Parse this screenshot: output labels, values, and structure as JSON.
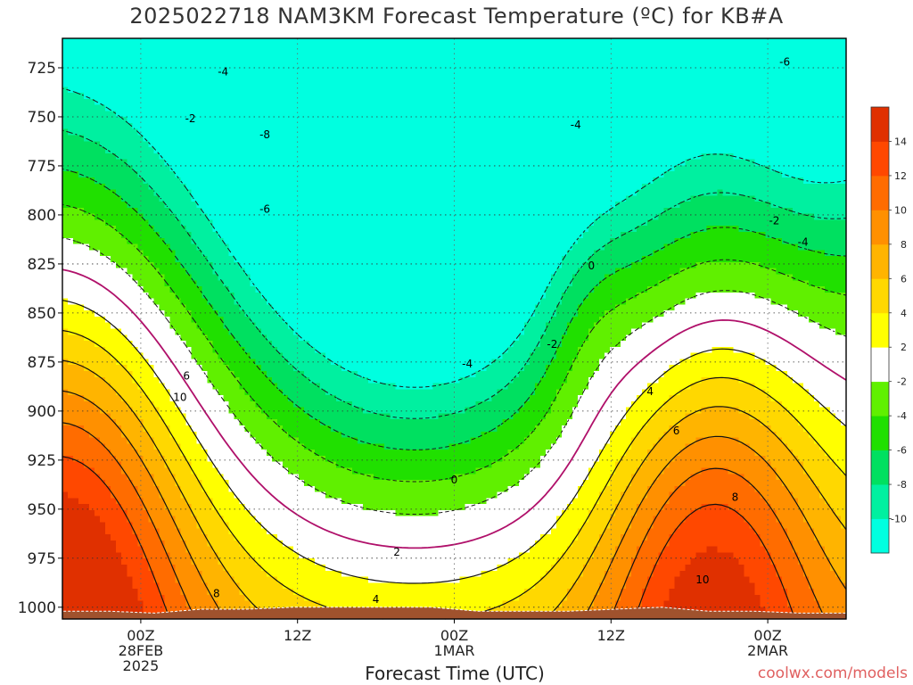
{
  "title": "2025022718 NAM3KM Forecast Temperature (ºC) for KB#A",
  "x_axis_title": "Forecast Time (UTC)",
  "credit": "coolwx.com/models",
  "chart_data": {
    "type": "heatmap",
    "title": "2025022718 NAM3KM Forecast Temperature (ºC) for KB#A",
    "xlabel": "Forecast Time (UTC)",
    "ylabel": "",
    "x_ticks": [
      {
        "hour": 6,
        "lines": [
          "00Z",
          "28FEB",
          "2025"
        ]
      },
      {
        "hour": 18,
        "lines": [
          "12Z"
        ]
      },
      {
        "hour": 30,
        "lines": [
          "00Z",
          "1MAR"
        ]
      },
      {
        "hour": 42,
        "lines": [
          "12Z"
        ]
      },
      {
        "hour": 54,
        "lines": [
          "00Z",
          "2MAR"
        ]
      }
    ],
    "xlim": [
      0,
      60
    ],
    "y_ticks": [
      "725",
      "750",
      "775",
      "800",
      "825",
      "850",
      "875",
      "900",
      "925",
      "950",
      "975",
      "1000"
    ],
    "ylim": [
      1006,
      710
    ],
    "grid": true,
    "colorbar": {
      "levels": [
        -12,
        -10,
        -8,
        -6,
        -4,
        -2,
        2,
        4,
        6,
        8,
        10,
        12,
        14,
        16
      ],
      "labels": [
        "-10",
        "-8",
        "-6",
        "-4",
        "-2",
        "2",
        "4",
        "6",
        "8",
        "10",
        "12",
        "14"
      ],
      "colors": [
        "#00ffe0",
        "#00f0a0",
        "#00e060",
        "#20e000",
        "#60f000",
        "#ffffff",
        "#ffff00",
        "#ffd800",
        "#ffb400",
        "#ff9000",
        "#ff6c00",
        "#ff4800",
        "#e03000"
      ]
    },
    "contour_labels": [
      {
        "text": "-4",
        "hour": 12.3,
        "p": 727
      },
      {
        "text": "-2",
        "hour": 9.8,
        "p": 751
      },
      {
        "text": "-8",
        "hour": 15.5,
        "p": 759
      },
      {
        "text": "-6",
        "hour": 15.5,
        "p": 797
      },
      {
        "text": "-4",
        "hour": 39.3,
        "p": 754
      },
      {
        "text": "-6",
        "hour": 55.3,
        "p": 722
      },
      {
        "text": "-2",
        "hour": 54.5,
        "p": 803
      },
      {
        "text": "-4",
        "hour": 56.7,
        "p": 814
      },
      {
        "text": "0",
        "hour": 40.5,
        "p": 826
      },
      {
        "text": "-2",
        "hour": 37.5,
        "p": 866
      },
      {
        "text": "-4",
        "hour": 31.0,
        "p": 876
      },
      {
        "text": "0",
        "hour": 30.0,
        "p": 935
      },
      {
        "text": "2",
        "hour": 25.6,
        "p": 972
      },
      {
        "text": "4",
        "hour": 24.0,
        "p": 996
      },
      {
        "text": "4",
        "hour": 45.0,
        "p": 890
      },
      {
        "text": "6",
        "hour": 47.0,
        "p": 910
      },
      {
        "text": "8",
        "hour": 51.5,
        "p": 944
      },
      {
        "text": "10",
        "hour": 49.0,
        "p": 986
      },
      {
        "text": "6",
        "hour": 9.5,
        "p": 882
      },
      {
        "text": "10",
        "hour": 9.0,
        "p": 893
      },
      {
        "text": "8",
        "hour": 11.8,
        "p": 993
      }
    ],
    "terrain_surface_mb": [
      1002,
      1002,
      1003,
      1001,
      1001,
      1000,
      1000,
      1000,
      1000,
      1002,
      1002,
      1002,
      1001,
      1000,
      1002,
      1002,
      1003,
      1003
    ]
  }
}
